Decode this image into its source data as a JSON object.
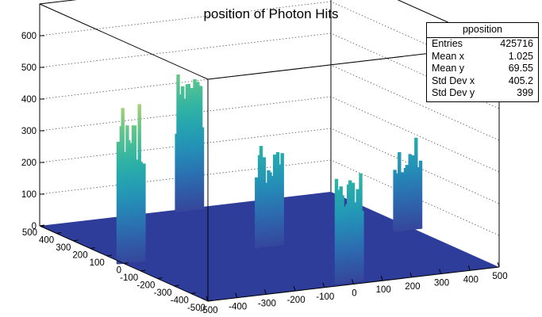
{
  "chart_data": {
    "type": "lego3d",
    "title": "position of Photon Hits",
    "xlabel": "",
    "ylabel": "",
    "zlabel": "",
    "x_range": [
      -500,
      500
    ],
    "y_range": [
      -500,
      500
    ],
    "z_range": [
      0,
      700
    ],
    "x_ticks": [
      "-500",
      "-400",
      "-300",
      "-200",
      "-100",
      "0",
      "100",
      "200",
      "300",
      "400",
      "500"
    ],
    "y_ticks": [
      "500",
      "400",
      "300",
      "200",
      "100",
      "0",
      "-100",
      "-200",
      "-300",
      "-400",
      "-500"
    ],
    "z_ticks": [
      "0",
      "100",
      "200",
      "300",
      "400",
      "500",
      "600"
    ],
    "grid": true,
    "stats": {
      "name": "pposition",
      "rows": [
        {
          "label": "Entries",
          "value": "425716"
        },
        {
          "label": "Mean x",
          "value": "1.025"
        },
        {
          "label": "Mean y",
          "value": "69.55"
        },
        {
          "label": "Std Dev x",
          "value": "405.2"
        },
        {
          "label": "Std Dev y",
          "value": "399"
        }
      ]
    },
    "clusters": [
      {
        "x": 0,
        "y": 475,
        "peak": 450
      },
      {
        "x": -475,
        "y": 0,
        "peak": 450
      },
      {
        "x": 0,
        "y": 0,
        "peak": 300
      },
      {
        "x": 475,
        "y": 0,
        "peak": 250
      },
      {
        "x": 0,
        "y": -475,
        "peak": 340
      }
    ],
    "colors": {
      "floor": "#2f3d9a",
      "palette": [
        "#35469b",
        "#2c6bb0",
        "#2394b8",
        "#28b0a8",
        "#5cc58d",
        "#b8d36a",
        "#f2e33a"
      ]
    }
  }
}
